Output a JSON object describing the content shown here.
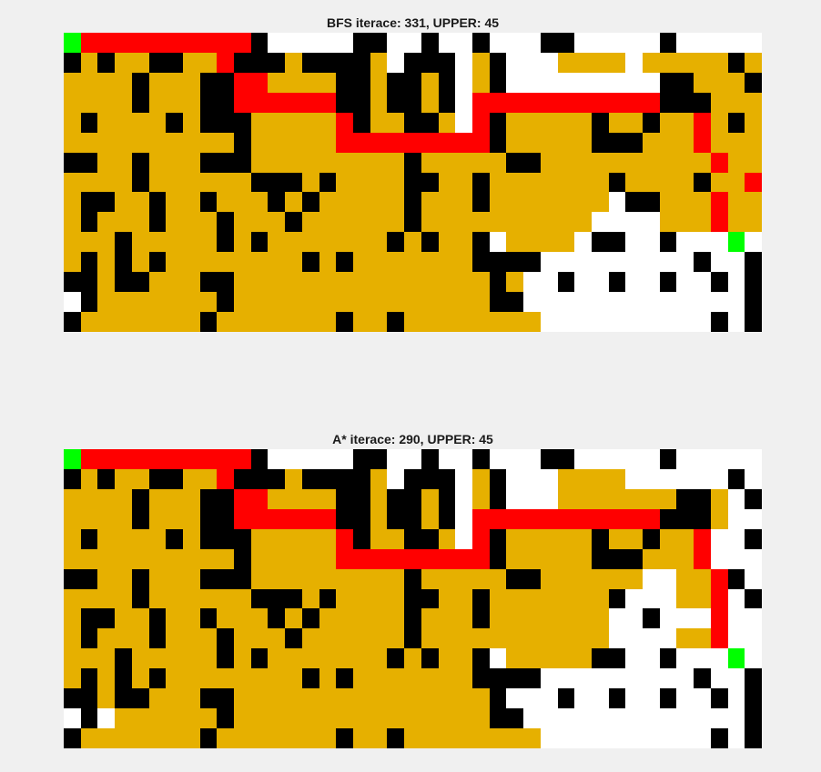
{
  "colors": {
    "white": "#ffffff",
    "black": "#000000",
    "visited": "#e6b000",
    "path": "#ff0000",
    "endpoint": "#00ff00"
  },
  "legend_codes": {
    "0": "white",
    "1": "black",
    "2": "visited",
    "3": "path",
    "4": "endpoint"
  },
  "panels": [
    {
      "title": "BFS iterace: 331, UPPER: 45",
      "grid": [
        "43333333333100000110010010001100000100000",
        "12122112231112111120111021000222202222212",
        "22221222113322221121121021000000000112221",
        "22221222113333331121121033333333333111222",
        "21222212111222223122112031222221221223212",
        "22222222221222223333333331222221112223222",
        "11221222111222222222122222112222222222322",
        "22221222222111212222112212222222122221223",
        "21122122122212122222122212222222011222322",
        "21222122212221222222122222222220000222322",
        "22212222212122222221212210222201100100040",
        "21212122222222121222222211110000000001001",
        "11211222112222222222222221200100100100101",
        "01222222212222222222222221100000000000001",
        "12222222122222221221222222220000000000101"
      ]
    },
    {
      "title": "A* iterace: 290, UPPER: 45",
      "grid": [
        "43333333333100000110010010001100000100000",
        "12122112231112111120111021000222200000010",
        "22221222113322221121121021000222222211201",
        "22221222113333331121121033333333333111200",
        "21222212111222223122112031222221221223001",
        "22222222221222223333333331222221112223000",
        "11221222111222222222122222112222220022310",
        "22221222222111212222112212222222100022301",
        "21122122122212122222122212222222001000300",
        "21222122212221222222122222222222000022300",
        "22212222212122222221212210222221100100040",
        "21212122222222121222222211110000000001001",
        "11211222112222222222222221000100100100101",
        "01022222212222222222222221100000000000001",
        "12222222122222221221222222220000000000101"
      ]
    }
  ]
}
